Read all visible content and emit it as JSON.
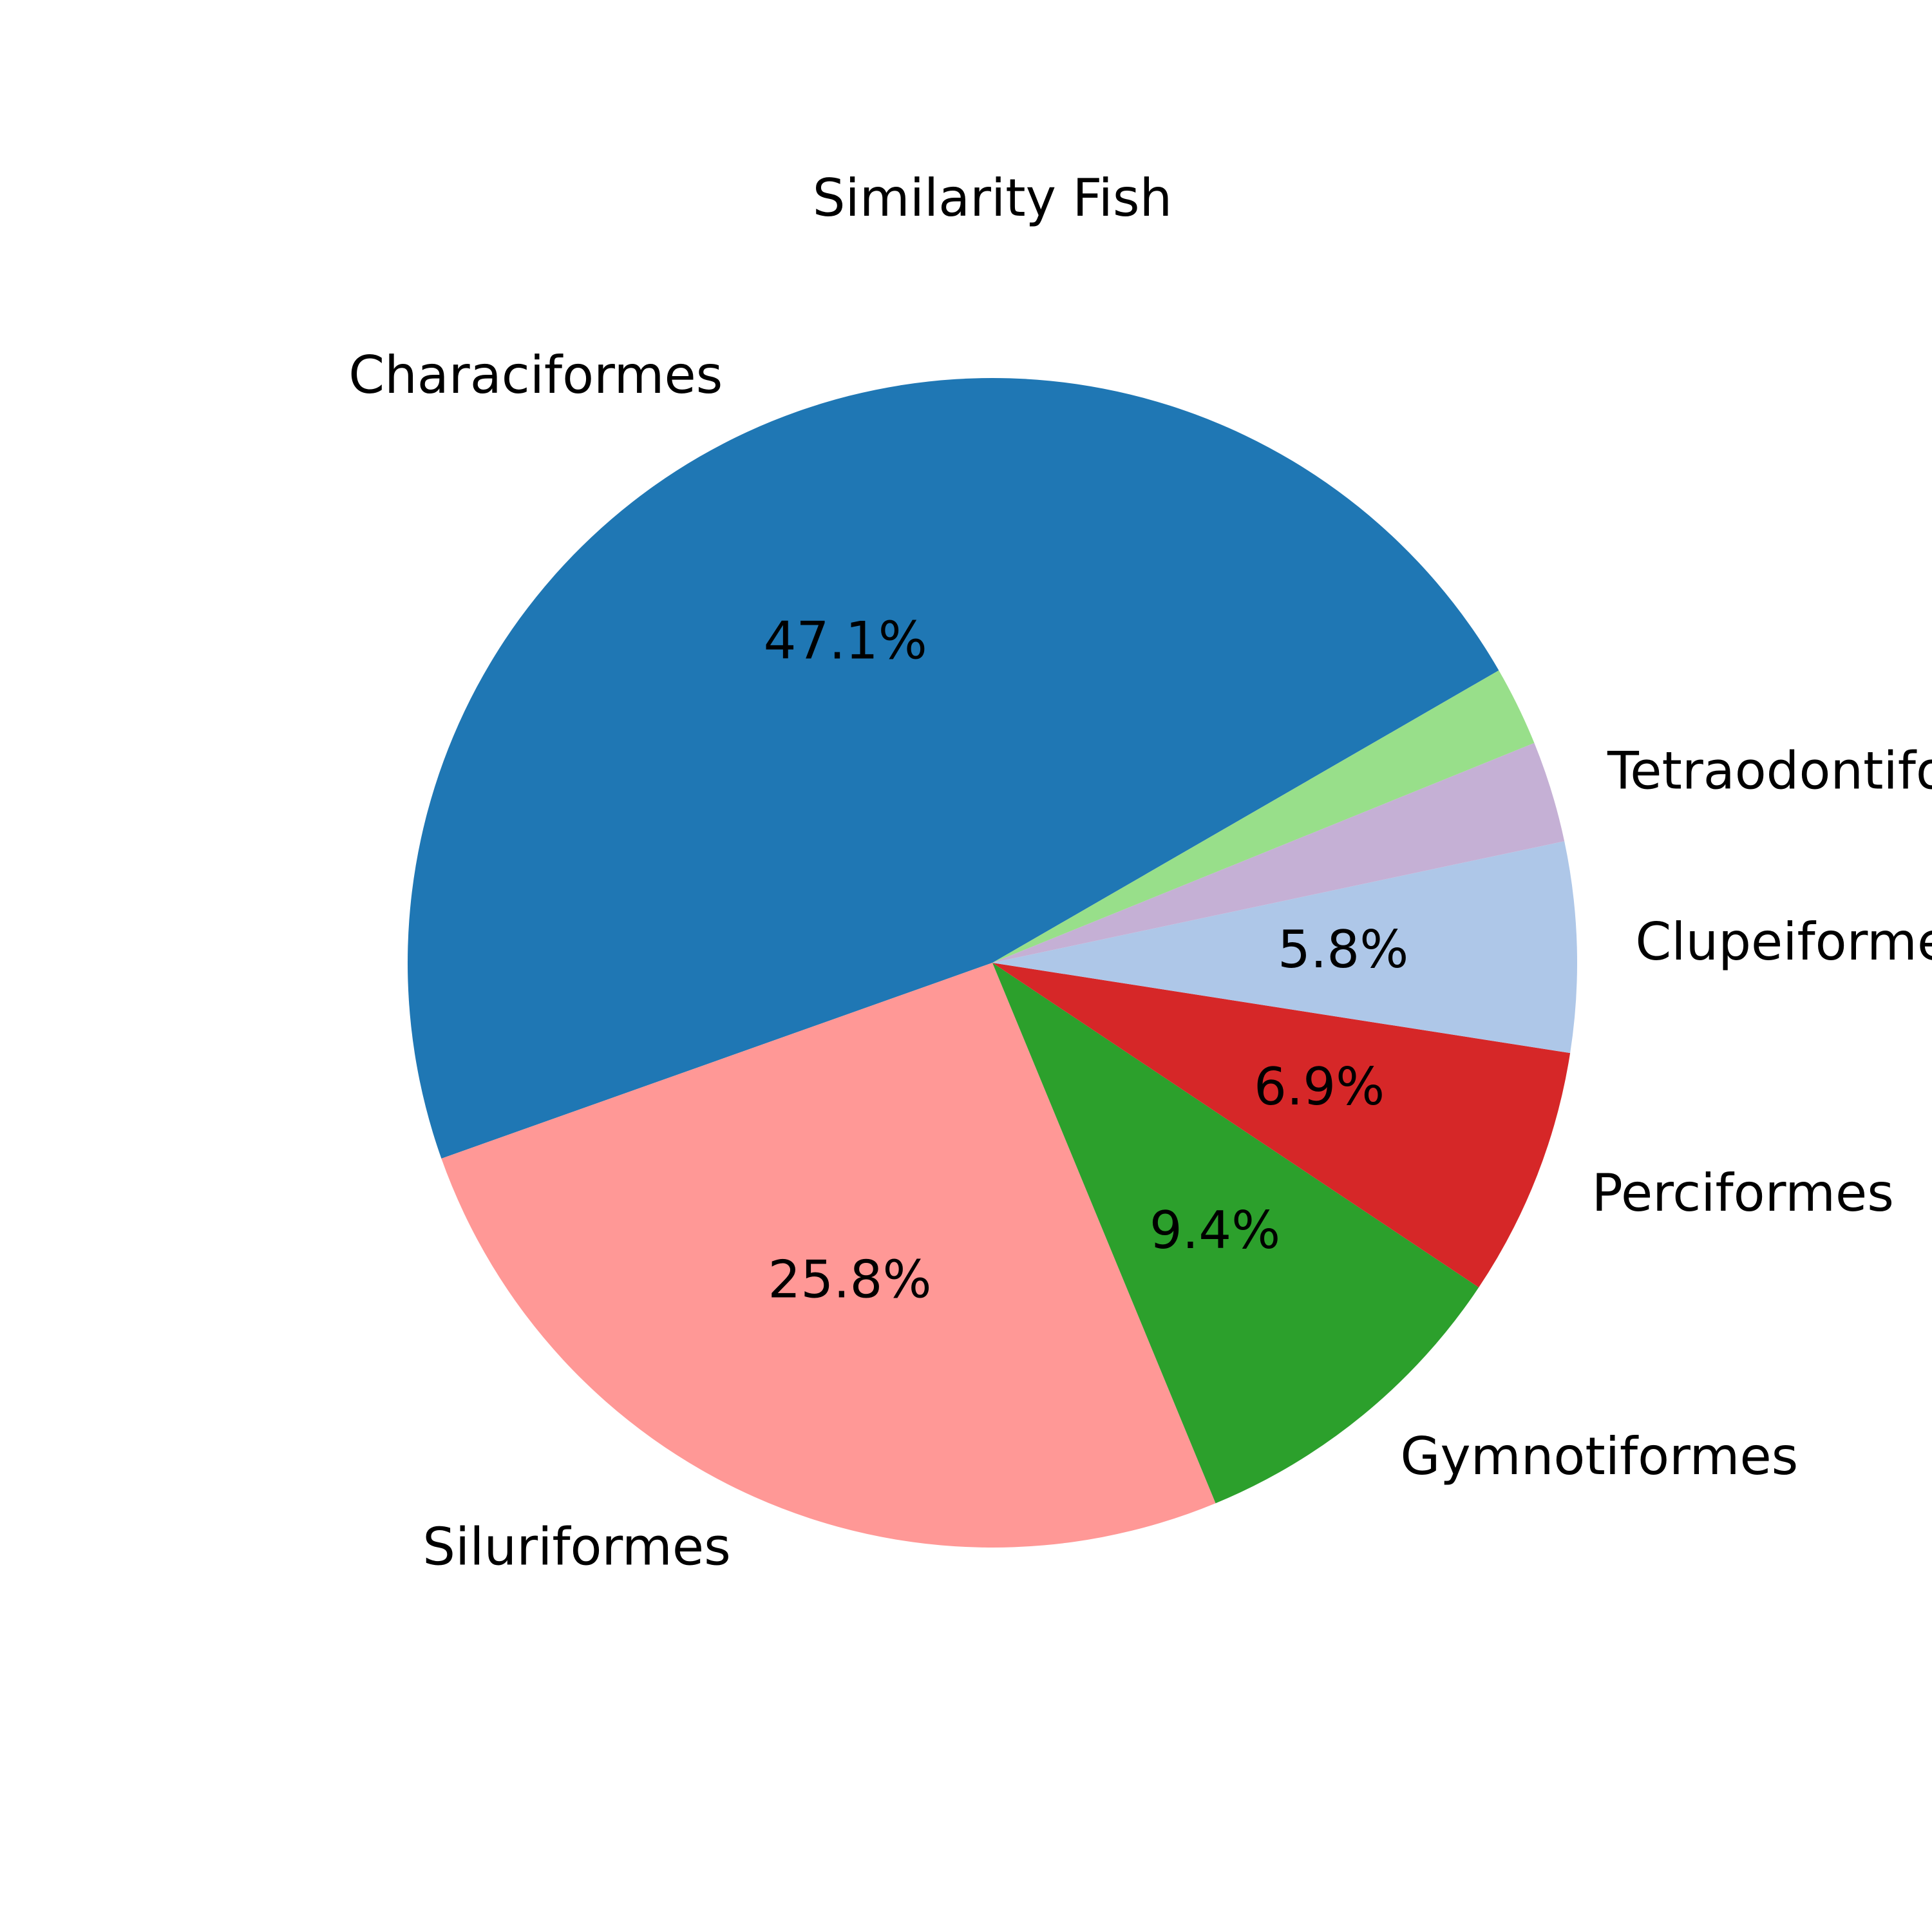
{
  "chart_data": {
    "type": "pie",
    "title": "Similarity Fish",
    "start_angle_deg": 30,
    "direction": "counterclockwise",
    "autopct_min": 5,
    "slices": [
      {
        "label": "Characiformes",
        "value": 47.1,
        "pct_label": "47.1%",
        "color": "#1f77b4"
      },
      {
        "label": "Siluriformes",
        "value": 25.8,
        "pct_label": "25.8%",
        "color": "#ff9896"
      },
      {
        "label": "Gymnotiformes",
        "value": 9.4,
        "pct_label": "9.4%",
        "color": "#2ca02c"
      },
      {
        "label": "Perciformes",
        "value": 6.9,
        "pct_label": "6.9%",
        "color": "#d62728"
      },
      {
        "label": "Clupeiformes",
        "value": 5.8,
        "pct_label": "5.8%",
        "color": "#aec7e8"
      },
      {
        "label": "Tetraodontiformes",
        "value": 2.8,
        "pct_label": "",
        "color": "#c5b0d5"
      },
      {
        "label": "",
        "value": 2.2,
        "pct_label": "",
        "color": "#98df8a"
      }
    ]
  }
}
